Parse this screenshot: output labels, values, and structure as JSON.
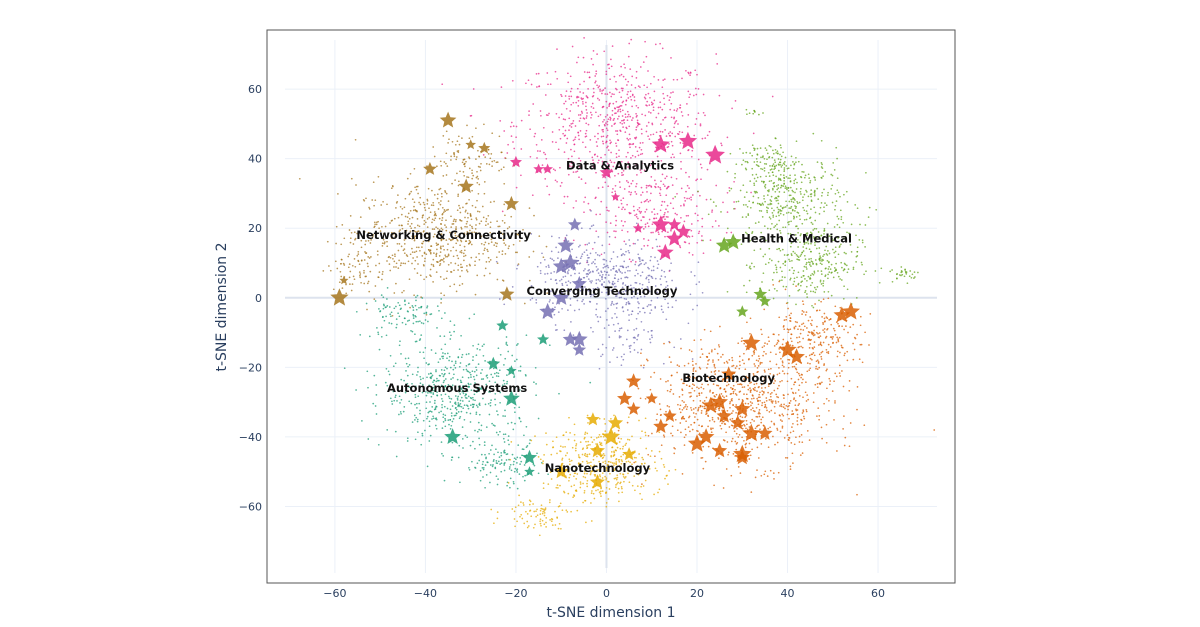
{
  "chart_data": {
    "type": "scatter",
    "title": "",
    "xlabel": "t-SNE dimension 1",
    "ylabel": "t-SNE dimension 2",
    "xlim": [
      -75,
      77
    ],
    "ylim": [
      -82,
      77
    ],
    "x_ticks": [
      -60,
      -40,
      -20,
      0,
      20,
      40,
      60
    ],
    "y_ticks": [
      -60,
      -40,
      -20,
      0,
      20,
      40,
      60
    ],
    "x_tick_labels": [
      "−60",
      "−40",
      "−20",
      "0",
      "20",
      "40",
      "60"
    ],
    "y_tick_labels": [
      "−60",
      "−40",
      "−20",
      "0",
      "20",
      "40",
      "60"
    ],
    "grid": true,
    "legend": "none",
    "series": [
      {
        "label": "Data & Analytics",
        "color": "#e7298a",
        "label_pos": [
          3,
          38
        ],
        "blobs": [
          [
            2,
            50,
            20,
            18,
            700
          ],
          [
            10,
            25,
            14,
            12,
            250
          ]
        ],
        "stars": [
          [
            12,
            44,
            1.2
          ],
          [
            18,
            45,
            1.2
          ],
          [
            24,
            41,
            1.3
          ],
          [
            0,
            36,
            0.9
          ],
          [
            -20,
            39,
            0.8
          ],
          [
            -15,
            37,
            0.7
          ],
          [
            -13,
            37,
            0.7
          ],
          [
            12,
            21,
            1.2
          ],
          [
            15,
            21,
            0.9
          ],
          [
            17,
            19,
            1.0
          ],
          [
            15,
            17,
            1.1
          ],
          [
            13,
            13,
            1.1
          ],
          [
            7,
            20,
            0.7
          ],
          [
            2,
            29,
            0.6
          ]
        ]
      },
      {
        "label": "Health & Medical",
        "color": "#66a61e",
        "label_pos": [
          42,
          17
        ],
        "blobs": [
          [
            40,
            28,
            12,
            12,
            400
          ],
          [
            45,
            10,
            10,
            10,
            300
          ],
          [
            36,
            40,
            6,
            5,
            80
          ],
          [
            66,
            7,
            3,
            2,
            30
          ],
          [
            33,
            53,
            2,
            1,
            10
          ]
        ],
        "stars": [
          [
            26,
            15,
            1.1
          ],
          [
            28,
            16,
            1.1
          ],
          [
            34,
            1,
            0.9
          ],
          [
            35,
            -1,
            0.8
          ],
          [
            30,
            -4,
            0.8
          ]
        ]
      },
      {
        "label": "Networking & Connectivity",
        "color": "#a6761d",
        "label_pos": [
          -36,
          18
        ],
        "blobs": [
          [
            -38,
            18,
            16,
            14,
            600
          ],
          [
            -30,
            40,
            8,
            8,
            100
          ],
          [
            -55,
            10,
            6,
            8,
            80
          ]
        ],
        "stars": [
          [
            -35,
            51,
            1.1
          ],
          [
            -39,
            37,
            0.9
          ],
          [
            -31,
            32,
            1.0
          ],
          [
            -27,
            43,
            0.8
          ],
          [
            -30,
            44,
            0.7
          ],
          [
            -21,
            27,
            1.0
          ],
          [
            -59,
            0,
            1.2
          ],
          [
            -58,
            5,
            0.6
          ],
          [
            -22,
            1,
            1.0
          ]
        ]
      },
      {
        "label": "Converging Technology",
        "color": "#7570b3",
        "label_pos": [
          -1,
          2
        ],
        "blobs": [
          [
            0,
            5,
            15,
            11,
            450
          ],
          [
            5,
            -10,
            8,
            8,
            80
          ]
        ],
        "stars": [
          [
            -7,
            21,
            0.9
          ],
          [
            -9,
            15,
            1.1
          ],
          [
            -10,
            9,
            1.1
          ],
          [
            -8,
            10,
            1.2
          ],
          [
            -6,
            4,
            1.0
          ],
          [
            -10,
            0,
            1.1
          ],
          [
            -13,
            -4,
            1.1
          ],
          [
            -6,
            -12,
            1.1
          ],
          [
            -8,
            -12,
            1.0
          ],
          [
            -6,
            -15,
            0.9
          ]
        ]
      },
      {
        "label": "Biotechnology",
        "color": "#d95f02",
        "label_pos": [
          27,
          -23
        ],
        "blobs": [
          [
            30,
            -30,
            18,
            16,
            850
          ],
          [
            45,
            -12,
            10,
            10,
            250
          ]
        ],
        "stars": [
          [
            52,
            -5,
            1.1
          ],
          [
            54,
            -4,
            1.2
          ],
          [
            32,
            -13,
            1.2
          ],
          [
            40,
            -15,
            1.2
          ],
          [
            42,
            -17,
            1.1
          ],
          [
            27,
            -22,
            1.0
          ],
          [
            6,
            -24,
            1.0
          ],
          [
            4,
            -29,
            1.0
          ],
          [
            6,
            -32,
            0.9
          ],
          [
            10,
            -29,
            0.8
          ],
          [
            14,
            -34,
            0.9
          ],
          [
            12,
            -37,
            1.0
          ],
          [
            23,
            -31,
            1.1
          ],
          [
            25,
            -30,
            1.1
          ],
          [
            26,
            -34,
            1.0
          ],
          [
            30,
            -32,
            1.1
          ],
          [
            29,
            -36,
            1.0
          ],
          [
            32,
            -39,
            1.2
          ],
          [
            35,
            -39,
            1.0
          ],
          [
            20,
            -42,
            1.2
          ],
          [
            22,
            -40,
            1.1
          ],
          [
            25,
            -44,
            1.0
          ],
          [
            30,
            -45,
            1.2
          ],
          [
            30,
            -46,
            1.0
          ]
        ]
      },
      {
        "label": "Autonomous Systems",
        "color": "#1b9e77",
        "label_pos": [
          -33,
          -26
        ],
        "blobs": [
          [
            -33,
            -27,
            15,
            14,
            550
          ],
          [
            -23,
            -48,
            8,
            6,
            120
          ],
          [
            -45,
            -5,
            8,
            6,
            100
          ]
        ],
        "stars": [
          [
            -23,
            -8,
            0.8
          ],
          [
            -14,
            -12,
            0.8
          ],
          [
            -25,
            -19,
            0.9
          ],
          [
            -21,
            -21,
            0.7
          ],
          [
            -21,
            -29,
            1.1
          ],
          [
            -34,
            -40,
            1.1
          ],
          [
            -17,
            -46,
            1.0
          ],
          [
            -17,
            -50,
            0.7
          ]
        ]
      },
      {
        "label": "Nanotechnology",
        "color": "#e6ab02",
        "label_pos": [
          -2,
          -49
        ],
        "blobs": [
          [
            -1,
            -48,
            12,
            10,
            400
          ],
          [
            -15,
            -62,
            7,
            4,
            80
          ]
        ],
        "stars": [
          [
            -3,
            -35,
            0.9
          ],
          [
            2,
            -36,
            1.0
          ],
          [
            1,
            -40,
            1.2
          ],
          [
            -2,
            -44,
            1.0
          ],
          [
            5,
            -45,
            0.9
          ],
          [
            -10,
            -50,
            1.0
          ],
          [
            -2,
            -53,
            1.0
          ]
        ]
      }
    ]
  }
}
